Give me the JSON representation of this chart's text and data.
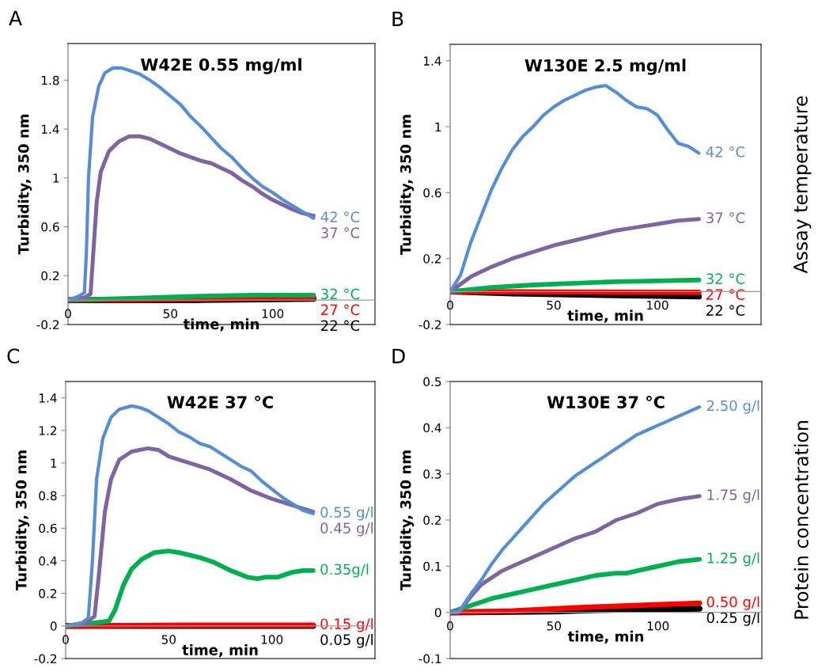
{
  "chart_data": [
    {
      "type": "line",
      "title": "W42E 0.55 mg/ml",
      "xlabel": "time, min",
      "ylabel": "Turbidity, 350 nm",
      "annotations": [
        "A"
      ],
      "xlim": [
        0,
        150
      ],
      "ylim": [
        -0.2,
        2.1
      ],
      "xticks": [
        0,
        50,
        100
      ],
      "yticks": [
        -0.2,
        0.2,
        0.6,
        1,
        1.4,
        1.8
      ],
      "grid": false,
      "legend": false,
      "series": [
        {
          "name": "42 °C",
          "color": "#558ed5",
          "x": [
            0,
            5,
            8,
            9,
            10,
            12,
            15,
            18,
            22,
            26,
            30,
            35,
            40,
            45,
            50,
            55,
            60,
            65,
            70,
            75,
            80,
            85,
            90,
            95,
            100,
            105,
            110,
            115,
            120
          ],
          "values": [
            0,
            0.03,
            0.06,
            0.4,
            1.0,
            1.5,
            1.75,
            1.86,
            1.9,
            1.9,
            1.88,
            1.85,
            1.8,
            1.74,
            1.67,
            1.6,
            1.5,
            1.42,
            1.33,
            1.24,
            1.17,
            1.08,
            1.0,
            0.93,
            0.88,
            0.82,
            0.77,
            0.72,
            0.67
          ]
        },
        {
          "name": "37 °C",
          "color": "#8064a2",
          "x": [
            0,
            8,
            11,
            12,
            14,
            16,
            20,
            25,
            30,
            35,
            40,
            45,
            50,
            55,
            60,
            65,
            70,
            75,
            80,
            85,
            90,
            95,
            100,
            105,
            110,
            115,
            120
          ],
          "values": [
            0,
            0.02,
            0.05,
            0.3,
            0.8,
            1.05,
            1.22,
            1.3,
            1.34,
            1.34,
            1.32,
            1.28,
            1.24,
            1.2,
            1.17,
            1.14,
            1.12,
            1.08,
            1.04,
            0.98,
            0.93,
            0.87,
            0.82,
            0.78,
            0.74,
            0.71,
            0.69
          ]
        },
        {
          "name": "32 °C",
          "color": "#00b050",
          "x": [
            0,
            20,
            40,
            60,
            90,
            120
          ],
          "values": [
            0,
            0.01,
            0.02,
            0.03,
            0.04,
            0.04
          ]
        },
        {
          "name": "27 °C",
          "color": "#ff0000",
          "x": [
            0,
            40,
            120
          ],
          "values": [
            0,
            0.005,
            0.02
          ]
        },
        {
          "name": "22 °C",
          "color": "#000000",
          "x": [
            0,
            60,
            120
          ],
          "values": [
            0,
            0,
            0.01
          ]
        }
      ]
    },
    {
      "type": "line",
      "title": "W130E 2.5 mg/ml",
      "xlabel": "time, min",
      "ylabel": "Turbidity, 350 nm",
      "annotations": [
        "B",
        "Assay temperature"
      ],
      "xlim": [
        0,
        150
      ],
      "ylim": [
        -0.2,
        1.5
      ],
      "xticks": [
        0,
        50,
        100
      ],
      "yticks": [
        -0.2,
        0.2,
        0.6,
        1,
        1.4
      ],
      "grid": false,
      "legend": false,
      "series": [
        {
          "name": "42 °C",
          "color": "#558ed5",
          "x": [
            0,
            5,
            10,
            15,
            20,
            25,
            30,
            35,
            40,
            45,
            50,
            55,
            60,
            65,
            70,
            75,
            80,
            85,
            90,
            95,
            100,
            105,
            110,
            115,
            120
          ],
          "values": [
            0,
            0.1,
            0.3,
            0.46,
            0.62,
            0.75,
            0.86,
            0.94,
            1.0,
            1.07,
            1.12,
            1.16,
            1.19,
            1.22,
            1.24,
            1.25,
            1.21,
            1.16,
            1.12,
            1.11,
            1.07,
            0.98,
            0.9,
            0.88,
            0.84
          ]
        },
        {
          "name": "37 °C",
          "color": "#8064a2",
          "x": [
            0,
            10,
            20,
            30,
            40,
            50,
            60,
            70,
            80,
            90,
            100,
            110,
            120
          ],
          "values": [
            0,
            0.09,
            0.15,
            0.2,
            0.24,
            0.28,
            0.31,
            0.34,
            0.37,
            0.39,
            0.41,
            0.43,
            0.44
          ]
        },
        {
          "name": "32 °C",
          "color": "#00b050",
          "x": [
            0,
            20,
            40,
            60,
            80,
            100,
            120
          ],
          "values": [
            0,
            0.025,
            0.04,
            0.05,
            0.06,
            0.065,
            0.07
          ]
        },
        {
          "name": "27 °C",
          "color": "#ff0000",
          "x": [
            0,
            60,
            120
          ],
          "values": [
            0,
            -0.003,
            -0.005
          ]
        },
        {
          "name": "22 °C",
          "color": "#000000",
          "x": [
            0,
            30,
            120
          ],
          "values": [
            0,
            -0.012,
            -0.03
          ]
        }
      ]
    },
    {
      "type": "line",
      "title": "W42E 37 °C",
      "xlabel": "time, min",
      "ylabel": "Turbidity, 350 nm",
      "annotations": [
        "C"
      ],
      "xlim": [
        0,
        150
      ],
      "ylim": [
        -0.2,
        1.5
      ],
      "xticks": [
        0,
        50,
        100
      ],
      "yticks": [
        -0.2,
        0,
        0.2,
        0.4,
        0.6,
        0.8,
        1,
        1.2,
        1.4
      ],
      "grid": false,
      "legend": false,
      "series": [
        {
          "name": "0.55 g/l",
          "color": "#558ed5",
          "x": [
            0,
            8,
            11,
            13,
            15,
            18,
            22,
            26,
            32,
            36,
            40,
            45,
            50,
            55,
            60,
            65,
            70,
            75,
            80,
            85,
            90,
            95,
            100,
            105,
            110,
            115,
            120
          ],
          "values": [
            0,
            0.02,
            0.05,
            0.4,
            0.9,
            1.15,
            1.28,
            1.33,
            1.35,
            1.34,
            1.32,
            1.28,
            1.24,
            1.19,
            1.16,
            1.12,
            1.1,
            1.06,
            1.02,
            0.98,
            0.95,
            0.89,
            0.84,
            0.79,
            0.75,
            0.71,
            0.69
          ]
        },
        {
          "name": "0.45 g/l",
          "color": "#8064a2",
          "x": [
            0,
            10,
            14,
            16,
            19,
            22,
            26,
            32,
            40,
            45,
            50,
            55,
            60,
            70,
            80,
            90,
            100,
            110,
            120
          ],
          "values": [
            0,
            0.02,
            0.06,
            0.3,
            0.7,
            0.9,
            1.02,
            1.07,
            1.09,
            1.08,
            1.04,
            1.02,
            1.0,
            0.96,
            0.9,
            0.83,
            0.78,
            0.74,
            0.7
          ]
        },
        {
          "name": "0.35g/l",
          "color": "#00b050",
          "x": [
            0,
            15,
            21,
            24,
            28,
            32,
            37,
            43,
            50,
            55,
            65,
            72,
            80,
            88,
            93,
            97,
            103,
            110,
            115,
            120
          ],
          "values": [
            0,
            0.02,
            0.03,
            0.1,
            0.25,
            0.35,
            0.41,
            0.45,
            0.46,
            0.45,
            0.42,
            0.39,
            0.34,
            0.3,
            0.29,
            0.3,
            0.3,
            0.33,
            0.34,
            0.34
          ]
        },
        {
          "name": "0.15 g/l",
          "color": "#ff0000",
          "x": [
            0,
            60,
            120
          ],
          "values": [
            0,
            0.005,
            0.005
          ]
        },
        {
          "name": "0.05 g/l",
          "color": "#000000",
          "x": [
            0,
            120
          ],
          "values": [
            0,
            0
          ]
        }
      ]
    },
    {
      "type": "line",
      "title": "W130E 37 °C",
      "xlabel": "time, min",
      "ylabel": "Turbidity, 350 nm",
      "annotations": [
        "D",
        "Protein concentration"
      ],
      "xlim": [
        0,
        150
      ],
      "ylim": [
        -0.1,
        0.5
      ],
      "xticks": [
        0,
        50,
        100
      ],
      "yticks": [
        -0.1,
        0,
        0.1,
        0.2,
        0.3,
        0.4,
        0.5
      ],
      "grid": false,
      "legend": false,
      "series": [
        {
          "name": "2.50 g/l",
          "color": "#558ed5",
          "x": [
            0,
            4,
            7,
            10,
            15,
            20,
            25,
            30,
            35,
            40,
            45,
            50,
            55,
            60,
            65,
            70,
            75,
            80,
            85,
            90,
            95,
            100,
            105,
            110,
            115,
            120
          ],
          "values": [
            0,
            0,
            0.02,
            0.04,
            0.07,
            0.105,
            0.135,
            0.16,
            0.185,
            0.21,
            0.235,
            0.255,
            0.275,
            0.295,
            0.31,
            0.325,
            0.34,
            0.355,
            0.37,
            0.385,
            0.395,
            0.405,
            0.415,
            0.425,
            0.435,
            0.445
          ]
        },
        {
          "name": "1.75 g/l",
          "color": "#8064a2",
          "x": [
            0,
            5,
            10,
            15,
            20,
            25,
            30,
            40,
            50,
            60,
            70,
            80,
            90,
            100,
            105,
            110,
            120
          ],
          "values": [
            0,
            0.005,
            0.035,
            0.06,
            0.075,
            0.09,
            0.1,
            0.12,
            0.14,
            0.16,
            0.175,
            0.2,
            0.215,
            0.235,
            0.24,
            0.245,
            0.252
          ]
        },
        {
          "name": "1.25 g/l",
          "color": "#00b050",
          "x": [
            0,
            10,
            20,
            30,
            40,
            50,
            60,
            70,
            80,
            85,
            90,
            100,
            110,
            120
          ],
          "values": [
            0,
            0.015,
            0.03,
            0.04,
            0.05,
            0.06,
            0.07,
            0.08,
            0.085,
            0.085,
            0.09,
            0.1,
            0.11,
            0.115
          ]
        },
        {
          "name": "0.50 g/l",
          "color": "#ff0000",
          "x": [
            0,
            30,
            60,
            90,
            120
          ],
          "values": [
            0,
            0.003,
            0.01,
            0.015,
            0.02
          ]
        },
        {
          "name": "0.25 g/l",
          "color": "#000000",
          "x": [
            0,
            50,
            80,
            120
          ],
          "values": [
            0,
            0.002,
            0.006,
            0.008
          ]
        }
      ]
    }
  ]
}
